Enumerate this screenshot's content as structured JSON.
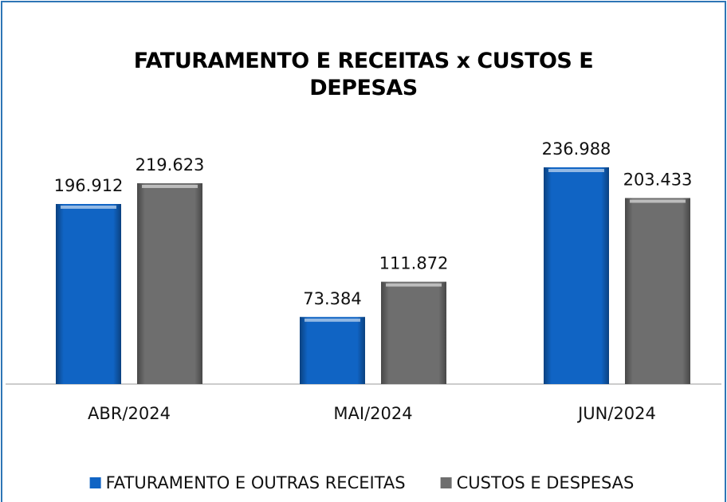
{
  "chart_data": {
    "type": "bar",
    "title": "FATURAMENTO E RECEITAS x CUSTOS E DEPESAS",
    "categories": [
      "ABR/2024",
      "MAI/2024",
      "JUN/2024"
    ],
    "series": [
      {
        "name": "FATURAMENTO E OUTRAS RECEITAS",
        "color": "#1064c4",
        "values": [
          196912,
          73384,
          236988
        ],
        "value_labels": [
          "196.912",
          "73.384",
          "236.988"
        ]
      },
      {
        "name": "CUSTOS E DESPESAS",
        "color": "#6e6e6e",
        "values": [
          219623,
          111872,
          203433
        ],
        "value_labels": [
          "219.623",
          "111.872",
          "203.433"
        ]
      }
    ],
    "legend": "bottom"
  }
}
